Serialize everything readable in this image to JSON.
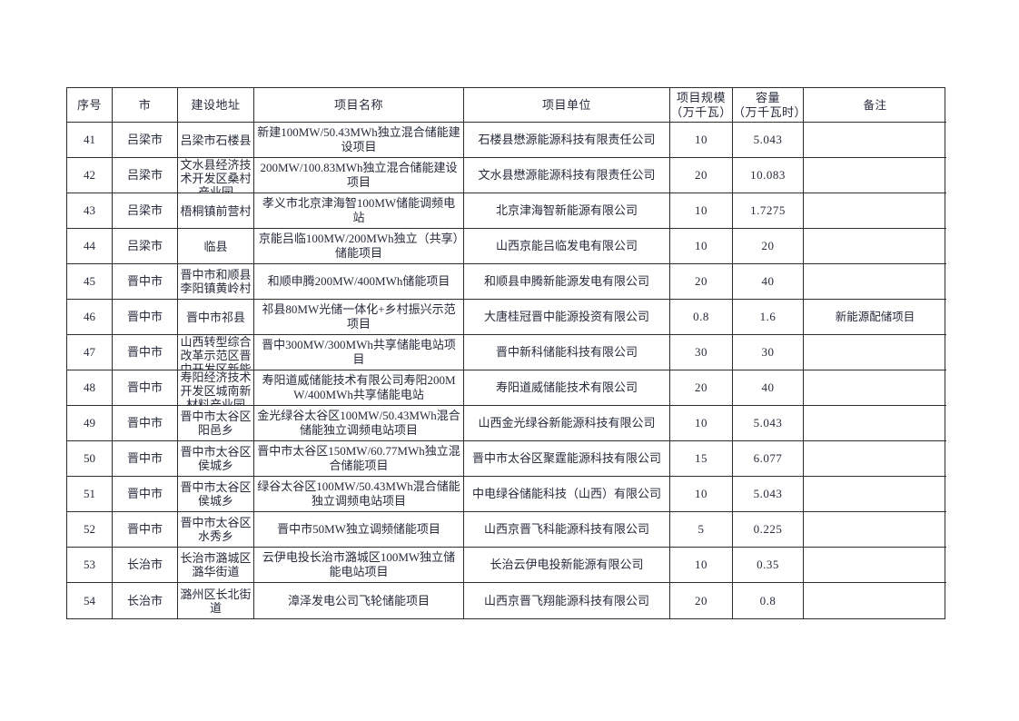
{
  "page": {
    "background": "#ffffff",
    "text_color": "#262b3c",
    "border_color": "#2e2e2e"
  },
  "table": {
    "columns": [
      {
        "key": "index",
        "label": "序号"
      },
      {
        "key": "city",
        "label": "市"
      },
      {
        "key": "address",
        "label": "建设地址"
      },
      {
        "key": "name",
        "label": "项目名称"
      },
      {
        "key": "unit",
        "label": "项目单位"
      },
      {
        "key": "scale",
        "label": "项目规模\n（万千瓦）"
      },
      {
        "key": "capacity",
        "label": "容量\n（万千瓦时）"
      },
      {
        "key": "remark",
        "label": "备注"
      }
    ],
    "rows": [
      {
        "index": "41",
        "city": "吕梁市",
        "address": "吕梁市石楼县",
        "name": "新建100MW/50.43MWh独立混合储能建设项目",
        "unit": "石楼县懋源能源科技有限责任公司",
        "scale": "10",
        "capacity": "5.043",
        "remark": ""
      },
      {
        "index": "42",
        "city": "吕梁市",
        "address": "文水县经济技术开发区桑村产业园",
        "name": "200MW/100.83MWh独立混合储能建设项目",
        "unit": "文水县懋源能源科技有限责任公司",
        "scale": "20",
        "capacity": "10.083",
        "remark": ""
      },
      {
        "index": "43",
        "city": "吕梁市",
        "address": "梧桐镇前营村",
        "name": "孝义市北京津海智100MW储能调频电站",
        "unit": "北京津海智新能源有限公司",
        "scale": "10",
        "capacity": "1.7275",
        "remark": ""
      },
      {
        "index": "44",
        "city": "吕梁市",
        "address": "临县",
        "name": "京能吕临100MW/200MWh独立（共享）储能项目",
        "unit": "山西京能吕临发电有限公司",
        "scale": "10",
        "capacity": "20",
        "remark": ""
      },
      {
        "index": "45",
        "city": "晋中市",
        "address": "晋中市和顺县李阳镇黄岭村",
        "name": "和顺申腾200MW/400MWh储能项目",
        "unit": "和顺县申腾新能源发电有限公司",
        "scale": "20",
        "capacity": "40",
        "remark": ""
      },
      {
        "index": "46",
        "city": "晋中市",
        "address": "晋中市祁县",
        "name": "祁县80MW光储一体化+乡村振兴示范项目",
        "unit": "大唐桂冠晋中能源投资有限公司",
        "scale": "0.8",
        "capacity": "1.6",
        "remark": "新能源配储项目"
      },
      {
        "index": "47",
        "city": "晋中市",
        "address": "山西转型综合改革示范区晋中开发区新能",
        "name": "晋中300MW/300MWh共享储能电站项目",
        "unit": "晋中新科储能科技有限公司",
        "scale": "30",
        "capacity": "30",
        "remark": ""
      },
      {
        "index": "48",
        "city": "晋中市",
        "address": "寿阳经济技术开发区城南新材料产业园",
        "name": "寿阳道威储能技术有限公司寿阳200MW/400MWh共享储能电站",
        "unit": "寿阳道威储能技术有限公司",
        "scale": "20",
        "capacity": "40",
        "remark": ""
      },
      {
        "index": "49",
        "city": "晋中市",
        "address": "晋中市太谷区阳邑乡",
        "name": "金光绿谷太谷区100MW/50.43MWh混合储能独立调频电站项目",
        "unit": "山西金光绿谷新能源科技有限公司",
        "scale": "10",
        "capacity": "5.043",
        "remark": ""
      },
      {
        "index": "50",
        "city": "晋中市",
        "address": "晋中市太谷区侯城乡",
        "name": "晋中市太谷区150MW/60.77MWh独立混合储能项目",
        "unit": "晋中市太谷区聚霆能源科技有限公司",
        "scale": "15",
        "capacity": "6.077",
        "remark": ""
      },
      {
        "index": "51",
        "city": "晋中市",
        "address": "晋中市太谷区侯城乡",
        "name": "绿谷太谷区100MW/50.43MWh混合储能独立调频电站项目",
        "unit": "中电绿谷储能科技（山西）有限公司",
        "scale": "10",
        "capacity": "5.043",
        "remark": ""
      },
      {
        "index": "52",
        "city": "晋中市",
        "address": "晋中市太谷区水秀乡",
        "name": "晋中市50MW独立调频储能项目",
        "unit": "山西京晋飞科能源科技有限公司",
        "scale": "5",
        "capacity": "0.225",
        "remark": ""
      },
      {
        "index": "53",
        "city": "长治市",
        "address": "长治市潞城区潞华街道",
        "name": "云伊电投长治市潞城区100MW独立储能电站项目",
        "unit": "长治云伊电投新能源有限公司",
        "scale": "10",
        "capacity": "0.35",
        "remark": ""
      },
      {
        "index": "54",
        "city": "长治市",
        "address": "潞州区长北街道",
        "name": "漳泽发电公司飞轮储能项目",
        "unit": "山西京晋飞翔能源科技有限公司",
        "scale": "20",
        "capacity": "0.8",
        "remark": ""
      }
    ]
  }
}
